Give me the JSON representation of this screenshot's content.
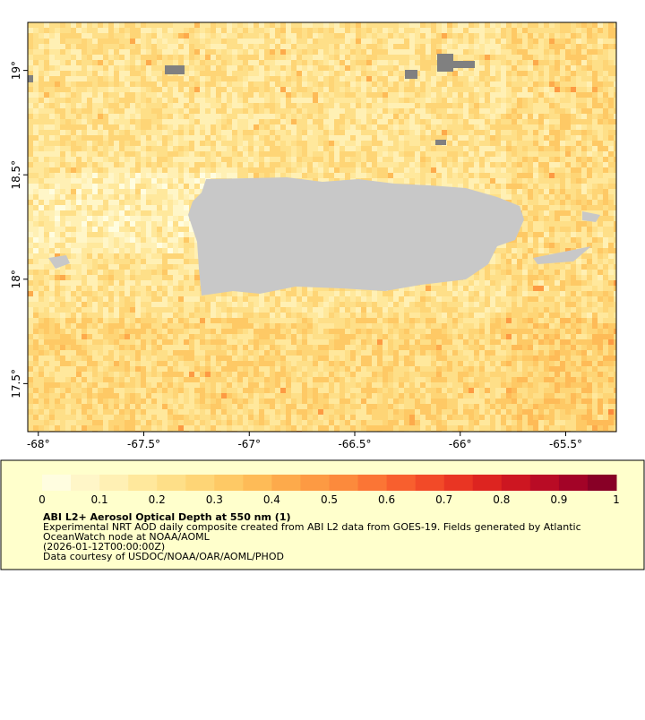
{
  "map": {
    "xlim": [
      -68.05,
      -65.26
    ],
    "ylim": [
      17.27,
      19.23
    ],
    "xticks": [
      {
        "value": -68,
        "label": "-68°"
      },
      {
        "value": -67.5,
        "label": "-67.5°"
      },
      {
        "value": -67,
        "label": "-67°"
      },
      {
        "value": -66.5,
        "label": "-66.5°"
      },
      {
        "value": -66,
        "label": "-66°"
      },
      {
        "value": -65.5,
        "label": "-65.5°"
      }
    ],
    "yticks": [
      {
        "value": 17.5,
        "label": "17.5°"
      },
      {
        "value": 18,
        "label": "18°"
      },
      {
        "value": 18.5,
        "label": "18.5°"
      },
      {
        "value": 19,
        "label": "19°"
      }
    ]
  },
  "colorbar": {
    "range": [
      0,
      1
    ],
    "ticks": [
      0,
      0.1,
      0.2,
      0.3,
      0.4,
      0.5,
      0.6,
      0.7,
      0.8,
      0.9,
      1
    ],
    "colors": [
      "#fffde0",
      "#fff6c8",
      "#fff0b4",
      "#ffe89c",
      "#fedf88",
      "#fed576",
      "#fec965",
      "#febb57",
      "#fdaa4b",
      "#fd9a43",
      "#fc8a3c",
      "#fb7535",
      "#f85f2e",
      "#f24a28",
      "#e93523",
      "#dd2420",
      "#cd1621",
      "#b90b25",
      "#a30327",
      "#880026"
    ]
  },
  "legend": {
    "title": "ABI L2+ Aerosol Optical Depth at 550 nm (1)",
    "lines": [
      "Experimental NRT AOD daily composite created from ABI L2 data from GOES-19. Fields generated by Atlantic",
      "OceanWatch node at NOAA/AOML",
      "(2026-01-12T00:00:00Z)",
      "Data courtesy of USDOC/NOAA/OAR/AOML/PHOD"
    ]
  }
}
